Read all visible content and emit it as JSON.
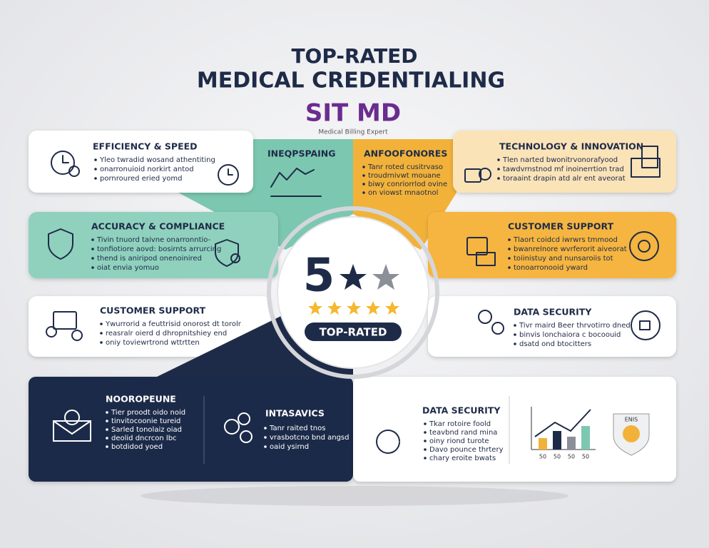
{
  "header": {
    "title_line1": "TOP-RATED",
    "title_line2": "MEDICAL CREDENTIALING",
    "logo": "SIT MD",
    "tagline": "Medical Billing Expert"
  },
  "center": {
    "number": "5",
    "badge": "TOP-RATED"
  },
  "cards": [
    {
      "title": "EFFICIENCY & SPEED",
      "bullets": [
        "Yleo twradid wosand athentiting",
        "onarronuioid norkirt antod",
        "pornroured eried yomd"
      ]
    },
    {
      "title": "INEQPSPAING",
      "bullets": []
    },
    {
      "title": "ANFOOFONORES",
      "bullets": [
        "Tanr roted cusitrvaso",
        "troudrnivwt mouane",
        "biwy conriorrlod ovine",
        "on viowst mnaotnol"
      ]
    },
    {
      "title": "TECHNOLOGY & INNOVATION",
      "bullets": [
        "Tlen narted bwonitrvonorafyood",
        "tawdvrnstnod mf inoinerrtion trad",
        "toraaint drapin atd alr ent aveorat"
      ]
    },
    {
      "title": "ACCURACY & COMPLIANCE",
      "bullets": [
        "Tivin tnuord taivne onarronntio-",
        "tonfiotiore aovd: bosirnts arrurcing",
        "thend is aniripod onenoinired",
        "oiat envia yomuo"
      ]
    },
    {
      "title": "CUSTOMER SUPPORT",
      "bullets": [
        "Tlaort coidcd iwrwrs tmmood",
        "bwanrelnore wvrferorit aiveorat",
        "toiinistuy and nunsaroiis tot",
        "tonoarronooid yward"
      ]
    },
    {
      "title": "CUSTOMER SUPPORT",
      "bullets": [
        "Ywurrorid a feuttrisid onorost dt torolr",
        "reasralr oierd d dhropnitshiey end",
        "oniy toviewrtrond wttrtten"
      ]
    },
    {
      "title": "DATA SECURITY",
      "bullets": [
        "Tivr maird Beer thrvotirro dned",
        "binvis lonchaiora c bocoouid",
        "dsatd ond btocitters"
      ]
    },
    {
      "title": "NOOROPEUNE",
      "bullets": [
        "Tier proodt oido noid",
        "tinvitocoonie tureid",
        "Sarled tonolaiz oiad",
        "deolid dncrcon lbc",
        "botdidod yoed"
      ]
    },
    {
      "title": "INTASAVICS",
      "bullets": [
        "Tanr raited tnos",
        "vrasbotcno bnd angsd",
        "oaid ysirnd"
      ]
    },
    {
      "title": "DATA SECURITY",
      "bullets": [
        "Tkar rotoire foold",
        "teavbnd rand mina",
        "oiny riond turote",
        "Davo pounce thrtery",
        "chary eroite bwats"
      ]
    }
  ],
  "mini_chart": {
    "labels": [
      "50",
      "50",
      "50",
      "50"
    ]
  },
  "shield_label": "ENIS"
}
